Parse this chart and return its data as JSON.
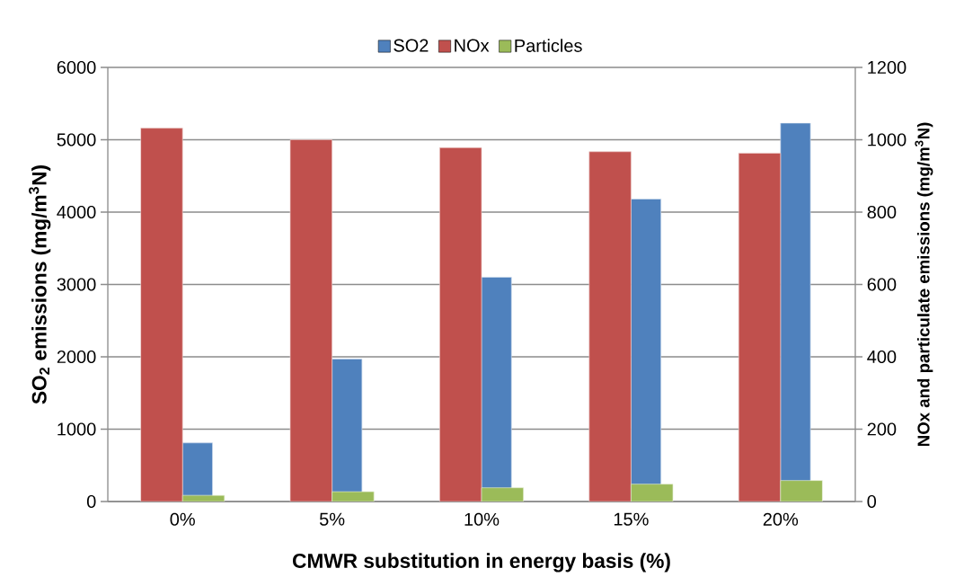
{
  "chart_data": {
    "type": "bar",
    "xlabel": "CMWR substitution in energy basis (%)",
    "ylabel": "SO$_{2}$ emissions (mg/m$^{3}$N)",
    "y2label": "NOx  and particulate emissions (mg/m$^{3}$N)",
    "categories": [
      "0%",
      "5%",
      "10%",
      "15%",
      "20%"
    ],
    "series": [
      {
        "name": "SO2",
        "color": "#4f81bd",
        "values": [
          810,
          1970,
          3100,
          4180,
          5230
        ]
      },
      {
        "name": "NOx",
        "color": "#c0504d",
        "axis": "y2",
        "values": [
          1032,
          1000,
          978,
          967,
          963
        ]
      },
      {
        "name": "Particles",
        "color": "#9bbb59",
        "axis": "y2",
        "values": [
          17,
          27,
          38,
          48,
          58
        ]
      }
    ],
    "ylim": [
      0,
      6000
    ],
    "yticks": [
      0,
      1000,
      2000,
      3000,
      4000,
      5000,
      6000
    ],
    "y2lim": [
      0,
      1200
    ],
    "y2ticks": [
      0,
      200,
      400,
      600,
      800,
      1000,
      1200
    ],
    "grid": "y",
    "legend": "top"
  }
}
